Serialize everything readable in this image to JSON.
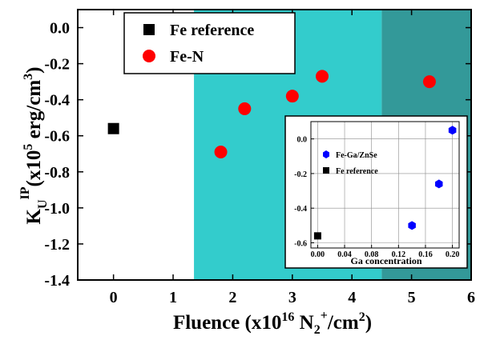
{
  "chart_data": [
    {
      "type": "scatter",
      "xlabel": "Fluence",
      "xlabel_unit": "(x10",
      "xlabel_exp": "16",
      "xlabel_unit2": "N",
      "xlabel_sub": "2",
      "xlabel_sup": "+",
      "xlabel_unit3": "/cm",
      "xlabel_exp2": "2",
      "xlabel_close": ")",
      "ylabel_main": "K",
      "ylabel_sub": "U",
      "ylabel_sup": "IP",
      "ylabel_unit": "(x10",
      "ylabel_exp": "5",
      "ylabel_unit2": " erg/cm",
      "ylabel_exp2": "3",
      "ylabel_close": ")",
      "xlim": [
        -0.6,
        6
      ],
      "ylim": [
        -1.4,
        0.1
      ],
      "xticks": [
        0,
        1,
        2,
        3,
        4,
        5,
        6
      ],
      "xtick_labels": [
        "0",
        "1",
        "2",
        "3",
        "4",
        "5",
        "6"
      ],
      "yticks": [
        0.0,
        -0.2,
        -0.4,
        -0.6,
        -0.8,
        -1.0,
        -1.2,
        -1.4
      ],
      "ytick_labels": [
        "0.0",
        "-0.2",
        "-0.4",
        "-0.6",
        "-0.8",
        "-1.0",
        "-1.2",
        "-1.4"
      ],
      "shaded_regions": [
        {
          "x_from": 1.35,
          "x_to": 4.5,
          "color": "#33cccc"
        },
        {
          "x_from": 4.5,
          "x_to": 6,
          "color": "#339999"
        }
      ],
      "series": [
        {
          "name": "Fe reference",
          "marker": "square",
          "color": "#000000",
          "points": [
            {
              "x": 0,
              "y": -0.56
            }
          ]
        },
        {
          "name": "Fe-N",
          "marker": "circle",
          "color": "#ff0000",
          "points": [
            {
              "x": 1.8,
              "y": -0.69
            },
            {
              "x": 2.2,
              "y": -0.45
            },
            {
              "x": 3.0,
              "y": -0.38
            },
            {
              "x": 3.5,
              "y": -0.27
            },
            {
              "x": 5.3,
              "y": -0.3
            }
          ]
        }
      ],
      "legend_position": "top-left"
    },
    {
      "type": "scatter",
      "xlabel": "Ga concentration",
      "ylabel": "",
      "xlim": [
        -0.01,
        0.21
      ],
      "ylim": [
        -0.63,
        0.1
      ],
      "xticks": [
        0.0,
        0.04,
        0.08,
        0.12,
        0.16,
        0.2
      ],
      "xtick_labels": [
        "0.00",
        "0.04",
        "0.08",
        "0.12",
        "0.16",
        "0.20"
      ],
      "yticks": [
        0.0,
        -0.2,
        -0.4,
        -0.6
      ],
      "ytick_labels": [
        "0.0",
        "-0.2",
        "-0.4",
        "-0.6"
      ],
      "grid": true,
      "series": [
        {
          "name": "Fe-Ga/ZnSe",
          "marker": "hexagon",
          "color": "#0000ff",
          "points": [
            {
              "x": 0.14,
              "y": -0.5
            },
            {
              "x": 0.18,
              "y": -0.26
            },
            {
              "x": 0.2,
              "y": 0.05
            }
          ]
        },
        {
          "name": "Fe reference",
          "marker": "square",
          "color": "#000000",
          "points": [
            {
              "x": 0.0,
              "y": -0.56
            }
          ]
        }
      ],
      "legend_position": "top-left"
    }
  ]
}
